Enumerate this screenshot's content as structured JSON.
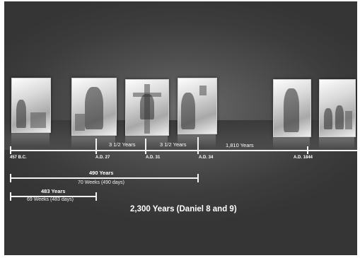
{
  "timeline": {
    "dates": [
      "457 B.C.",
      "A.D. 27",
      "A.D. 31",
      "A.D. 34",
      "A.D. 1844"
    ],
    "segments": [
      "3 1/2 Years",
      "3 1/2 Years",
      "1,810 Years"
    ],
    "span_490": {
      "title": "490 Years",
      "detail": "70 Weeks (490 days)"
    },
    "span_483": {
      "title": "483 Years",
      "detail": "69 Weeks (483 days)"
    },
    "overall": "2,300 Years (Daniel 8 and 9)"
  },
  "panels": [
    "panel-1",
    "panel-2",
    "panel-3",
    "panel-4",
    "panel-5",
    "panel-6"
  ]
}
